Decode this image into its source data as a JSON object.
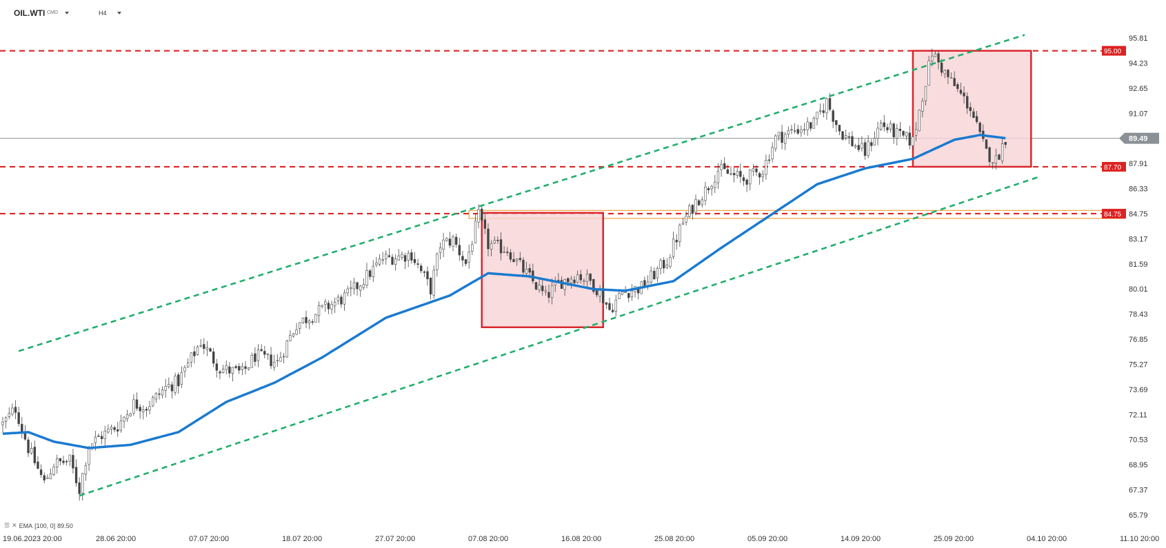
{
  "header": {
    "symbol": "OIL.WTI",
    "symbol_suffix": "CMD",
    "timeframe": "H4"
  },
  "indicator": {
    "label": "EMA",
    "params": "[100,  0]",
    "value": "89.50"
  },
  "colors": {
    "level_line": "#dd2222",
    "channel_line": "#1fae6b",
    "ema_line": "#1a7ad0",
    "box_fill": "#f7d3d6",
    "box_stroke": "#d8262b",
    "zone_stroke": "#f0a040",
    "current_price_tag": "#8a9096",
    "candle": "#444444"
  },
  "chart_data": {
    "type": "candlestick",
    "symbol": "OIL.WTI",
    "timeframe": "H4",
    "x_labels": [
      "19.06.2023  20:00",
      "28.06  20:00",
      "07.07  20:00",
      "18.07  20:00",
      "27.07  20:00",
      "07.08  20:00",
      "16.08  20:00",
      "25.08  20:00",
      "05.09  20:00",
      "14.09  20:00",
      "25.09  20:00",
      "04.10  20:00",
      "11.10  20:00"
    ],
    "y_ticks": [
      "95.81",
      "94.23",
      "92.65",
      "91.07",
      "89.49",
      "87.91",
      "86.33",
      "84.75",
      "83.17",
      "81.59",
      "80.01",
      "78.43",
      "76.85",
      "75.27",
      "73.69",
      "72.11",
      "70.53",
      "68.95",
      "67.37",
      "65.79"
    ],
    "y_range": [
      65.79,
      95.81
    ],
    "current_price": "89.49",
    "levels": [
      {
        "value": 95.0,
        "label": "95.00"
      },
      {
        "value": 87.7,
        "label": "87.70"
      },
      {
        "value": 84.75,
        "label": "84.75"
      }
    ],
    "close_anchors": [
      [
        0,
        71.5
      ],
      [
        4,
        72.5
      ],
      [
        8,
        70.0
      ],
      [
        13,
        67.8
      ],
      [
        16,
        69.0
      ],
      [
        21,
        69.2
      ],
      [
        24,
        67.4
      ],
      [
        27,
        70.2
      ],
      [
        31,
        70.8
      ],
      [
        36,
        71.4
      ],
      [
        41,
        72.8
      ],
      [
        45,
        72.6
      ],
      [
        51,
        73.8
      ],
      [
        55,
        74.2
      ],
      [
        62,
        76.7
      ],
      [
        68,
        75.0
      ],
      [
        75,
        74.7
      ],
      [
        79,
        75.8
      ],
      [
        86,
        75.4
      ],
      [
        92,
        77.8
      ],
      [
        99,
        78.6
      ],
      [
        108,
        79.6
      ],
      [
        113,
        80.6
      ],
      [
        119,
        81.9
      ],
      [
        128,
        82.2
      ],
      [
        134,
        80.0
      ],
      [
        137,
        82.8
      ],
      [
        141,
        83.1
      ],
      [
        145,
        81.6
      ],
      [
        149,
        84.6
      ],
      [
        152,
        82.8
      ],
      [
        158,
        82.5
      ],
      [
        163,
        81.2
      ],
      [
        170,
        79.5
      ],
      [
        174,
        80.4
      ],
      [
        180,
        80.9
      ],
      [
        184,
        80.5
      ],
      [
        187,
        79.8
      ],
      [
        190,
        78.7
      ],
      [
        194,
        79.8
      ],
      [
        200,
        80.1
      ],
      [
        208,
        81.8
      ],
      [
        213,
        84.2
      ],
      [
        217,
        85.5
      ],
      [
        220,
        86.2
      ],
      [
        224,
        87.5
      ],
      [
        228,
        87.2
      ],
      [
        232,
        86.9
      ],
      [
        238,
        87.5
      ],
      [
        242,
        89.5
      ],
      [
        248,
        90.0
      ],
      [
        254,
        90.4
      ],
      [
        258,
        91.8
      ],
      [
        262,
        90.0
      ],
      [
        266,
        89.2
      ],
      [
        270,
        88.6
      ],
      [
        275,
        90.4
      ],
      [
        281,
        89.6
      ],
      [
        285,
        89.3
      ],
      [
        288,
        92.2
      ],
      [
        291,
        94.9
      ],
      [
        295,
        93.6
      ],
      [
        299,
        92.5
      ],
      [
        303,
        91.4
      ],
      [
        306,
        89.6
      ],
      [
        308,
        88.6
      ],
      [
        311,
        88.1
      ],
      [
        314,
        89.5
      ]
    ],
    "ema_100": [
      [
        0,
        70.9
      ],
      [
        8,
        71.0
      ],
      [
        16,
        70.4
      ],
      [
        27,
        70.0
      ],
      [
        40,
        70.2
      ],
      [
        55,
        71.0
      ],
      [
        70,
        72.9
      ],
      [
        85,
        74.1
      ],
      [
        100,
        75.7
      ],
      [
        120,
        78.2
      ],
      [
        140,
        79.6
      ],
      [
        152,
        81.0
      ],
      [
        165,
        80.8
      ],
      [
        175,
        80.4
      ],
      [
        185,
        80.0
      ],
      [
        195,
        79.9
      ],
      [
        210,
        80.5
      ],
      [
        225,
        82.6
      ],
      [
        240,
        84.6
      ],
      [
        255,
        86.6
      ],
      [
        270,
        87.6
      ],
      [
        285,
        88.2
      ],
      [
        298,
        89.4
      ],
      [
        306,
        89.7
      ],
      [
        314,
        89.5
      ]
    ],
    "channel_lines": [
      {
        "name": "upper",
        "start": [
          5,
          76.1
        ],
        "end": [
          320,
          96.0
        ]
      },
      {
        "name": "lower",
        "start": [
          24,
          67.0
        ],
        "end": [
          325,
          87.1
        ]
      }
    ],
    "boxes": [
      {
        "start_index": 150,
        "end_index": 188,
        "high": 84.8,
        "low": 77.6
      },
      {
        "start_index": 285,
        "end_index": 322,
        "high": 95.0,
        "low": 87.7
      }
    ],
    "resistance_zone": {
      "start_index": 146,
      "high": 84.95,
      "low": 84.45
    },
    "bars_shown": 315,
    "x_span_bars": 350
  }
}
